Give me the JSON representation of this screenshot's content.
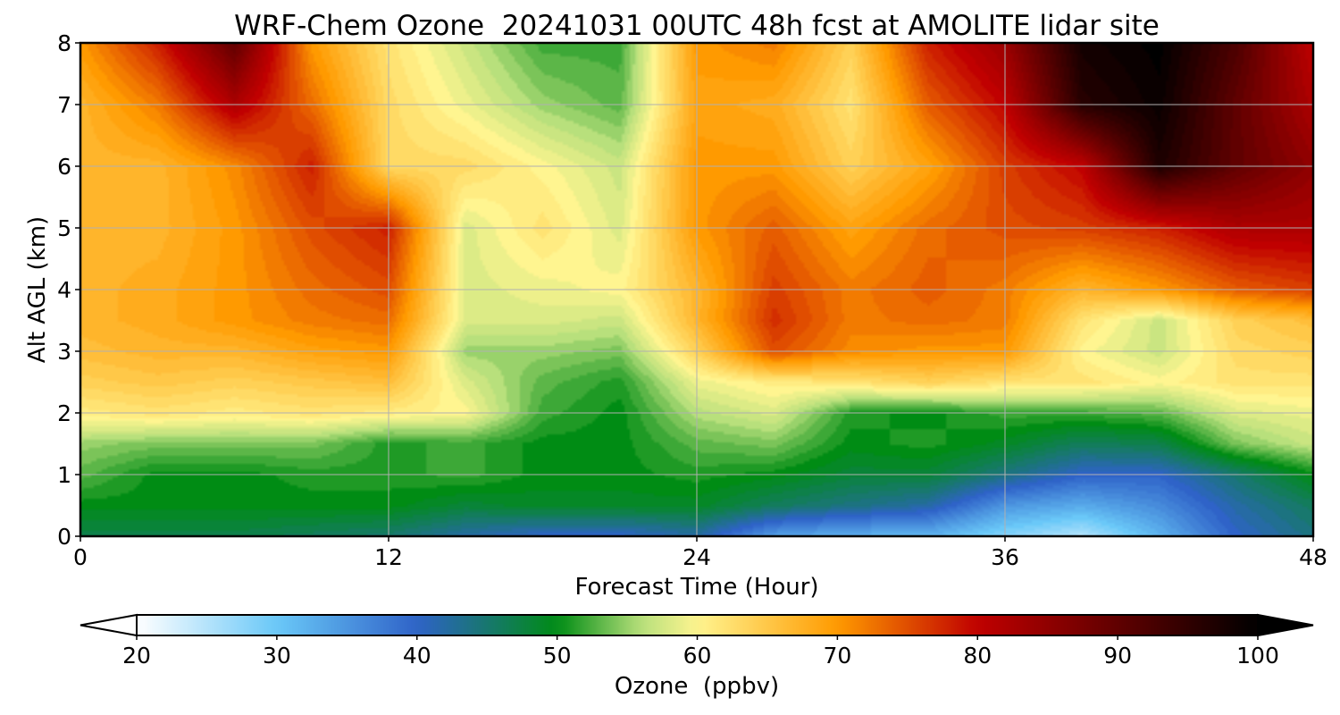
{
  "chart_data": {
    "type": "heatmap",
    "title": "WRF-Chem Ozone  20241031 00UTC 48h fcst at AMOLITE lidar site",
    "xlabel": "Forecast Time (Hour)",
    "ylabel": "Alt AGL (km)",
    "xlim": [
      0,
      48
    ],
    "ylim": [
      0,
      8
    ],
    "x_ticks": [
      "0",
      "12",
      "24",
      "36",
      "48"
    ],
    "y_ticks": [
      "0",
      "1",
      "2",
      "3",
      "4",
      "5",
      "6",
      "7",
      "8"
    ],
    "grid": true,
    "colorbar": {
      "label": "Ozone  (ppbv)",
      "range": [
        20,
        100
      ],
      "ticks": [
        "20",
        "30",
        "40",
        "50",
        "60",
        "70",
        "80",
        "90",
        "100"
      ],
      "extend": "both",
      "colors": [
        "#ffffff",
        "#6ac8f8",
        "#2f63c8",
        "#008c14",
        "#b8e07c",
        "#fff590",
        "#ff9a00",
        "#c00000",
        "#000000"
      ],
      "color_stops": [
        20,
        30,
        40,
        50,
        56,
        60,
        70,
        80,
        100
      ]
    },
    "x": [
      0,
      3,
      6,
      9,
      12,
      15,
      18,
      21,
      24,
      27,
      30,
      33,
      36,
      39,
      42,
      45,
      48
    ],
    "y": [
      0,
      0.5,
      1,
      1.5,
      2,
      2.5,
      3,
      3.5,
      4,
      5,
      6,
      7,
      8
    ],
    "series": [
      {
        "values": [
          [
            47,
            47,
            47,
            46,
            45,
            42,
            40,
            40,
            42,
            34,
            32,
            32,
            28,
            25,
            32,
            40,
            44
          ],
          [
            50,
            50,
            50,
            50,
            50,
            48,
            49,
            49,
            49,
            46,
            44,
            42,
            35,
            33,
            36,
            42,
            46
          ],
          [
            53,
            50,
            50,
            51,
            51,
            52,
            50,
            50,
            51,
            50,
            48,
            48,
            44,
            40,
            40,
            45,
            50
          ],
          [
            55,
            54,
            54,
            54,
            51,
            52,
            50,
            50,
            53,
            54,
            50,
            51,
            49,
            46,
            47,
            54,
            57
          ],
          [
            61,
            62,
            61,
            62,
            61,
            60,
            52,
            50,
            56,
            58,
            51,
            50,
            52,
            52,
            53,
            58,
            59
          ],
          [
            64,
            65,
            64,
            65,
            66,
            58,
            53,
            51,
            59,
            61,
            62,
            64,
            62,
            62,
            60,
            62,
            62
          ],
          [
            66,
            67,
            67,
            69,
            70,
            55,
            55,
            54,
            64,
            75,
            71,
            70,
            70,
            60,
            57,
            63,
            64
          ],
          [
            67,
            68,
            70,
            72,
            73,
            58,
            58,
            57,
            67,
            77,
            72,
            73,
            72,
            62,
            57,
            64,
            66
          ],
          [
            67,
            68,
            70,
            73,
            75,
            58,
            59,
            60,
            67,
            76,
            72,
            74,
            72,
            67,
            70,
            74,
            76
          ],
          [
            67,
            67,
            70,
            75,
            78,
            58,
            62,
            58,
            70,
            74,
            69,
            73,
            75,
            76,
            78,
            82,
            82
          ],
          [
            67,
            67,
            71,
            78,
            63,
            63,
            60,
            57,
            70,
            70,
            64,
            69,
            76,
            80,
            97,
            90,
            85
          ],
          [
            67,
            72,
            82,
            73,
            63,
            59,
            55,
            53,
            69,
            68,
            62,
            74,
            80,
            96,
            99,
            90,
            82
          ],
          [
            70,
            78,
            90,
            70,
            62,
            57,
            52,
            52,
            70,
            72,
            64,
            78,
            84,
            98,
            100,
            92,
            80
          ]
        ]
      }
    ]
  }
}
